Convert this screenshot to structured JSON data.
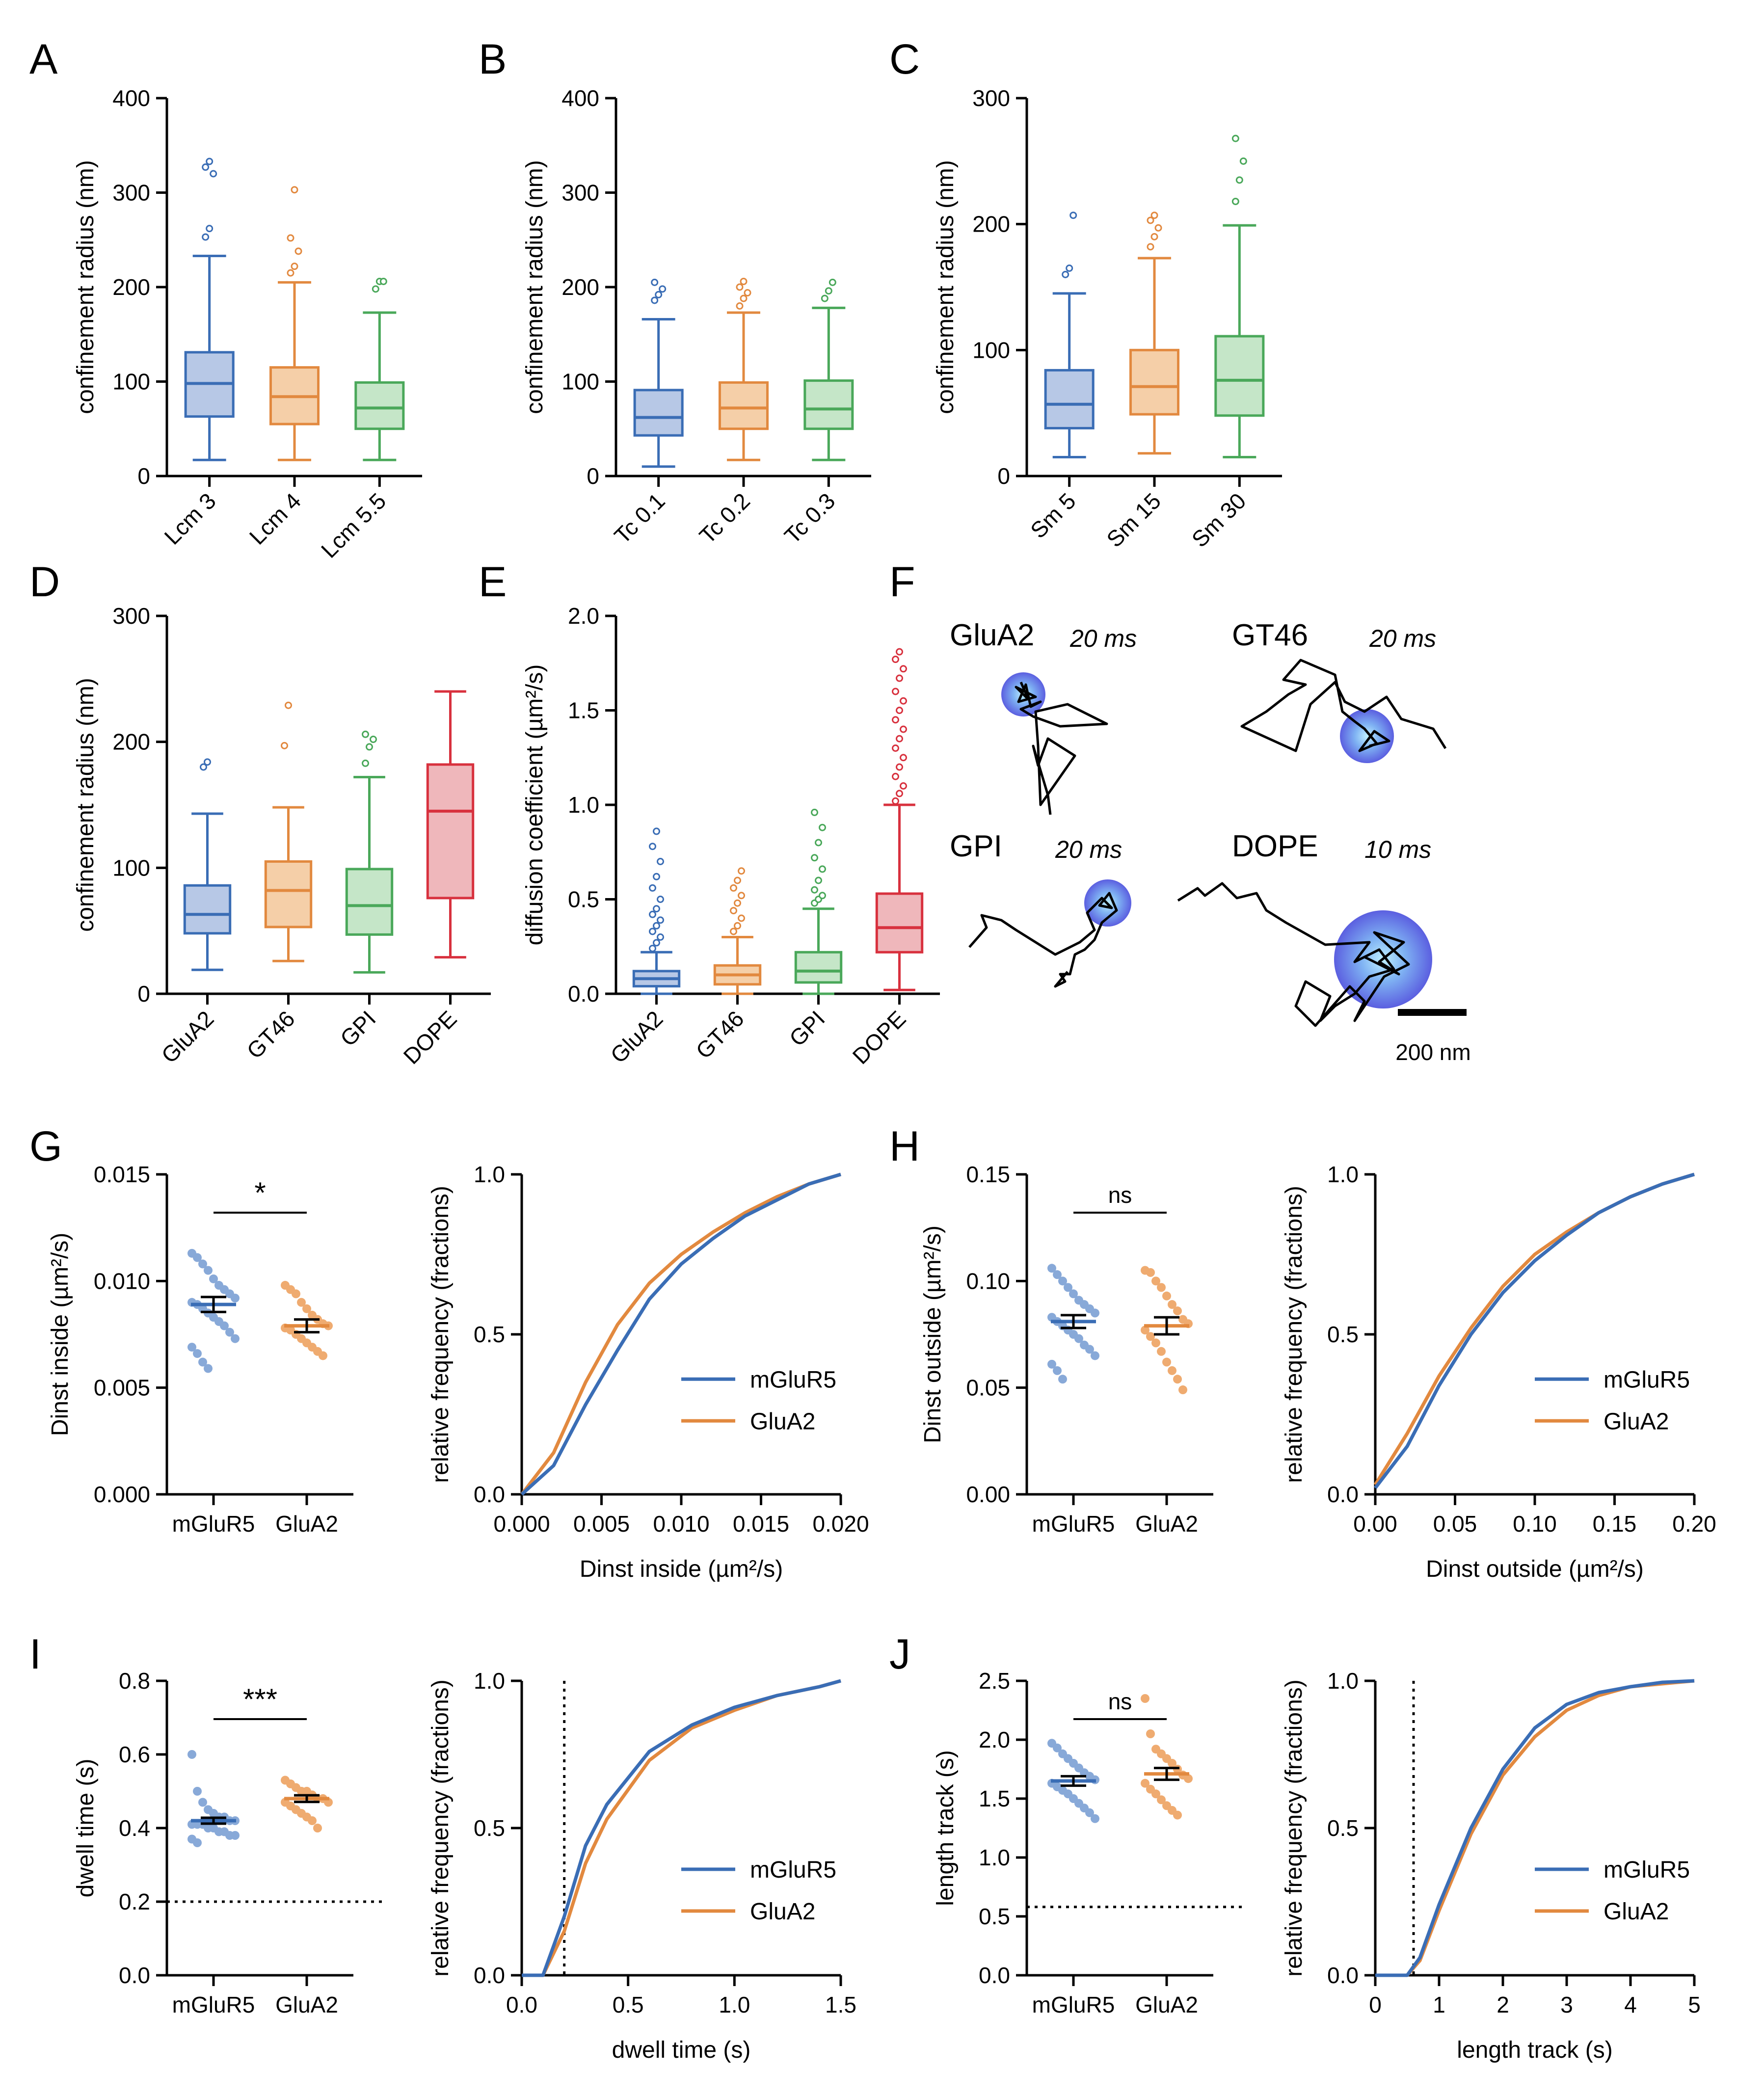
{
  "colors": {
    "blue": "#3a6db5",
    "orange": "#e2893f",
    "green": "#4aa85a",
    "red": "#d8313e",
    "blue_fill": "#b7c8e6",
    "orange_fill": "#f5cfa8",
    "green_fill": "#c5e6c8",
    "red_fill": "#efb7bb",
    "blue_pt": "#88a9d8",
    "orange_pt": "#efab70"
  },
  "chart_data": [
    {
      "panel": "A",
      "type": "box",
      "ylabel": "confinement radius (nm)",
      "ylim": [
        0,
        400
      ],
      "yticks": [
        "0",
        "100",
        "200",
        "300",
        "400"
      ],
      "categories": [
        "Lcm 3",
        "Lcm 4",
        "Lcm 5.5"
      ],
      "boxes": [
        {
          "min": 17,
          "q1": 63,
          "median": 98,
          "q3": 131,
          "max": 233,
          "outliers": [
            253,
            262,
            320,
            327,
            333
          ],
          "color": "blue"
        },
        {
          "min": 17,
          "q1": 55,
          "median": 84,
          "q3": 115,
          "max": 205,
          "outliers": [
            215,
            222,
            238,
            252,
            303
          ],
          "color": "orange"
        },
        {
          "min": 17,
          "q1": 50,
          "median": 72,
          "q3": 99,
          "max": 173,
          "outliers": [
            198,
            206,
            206
          ],
          "color": "green"
        }
      ]
    },
    {
      "panel": "B",
      "type": "box",
      "ylabel": "confinement radius (nm)",
      "ylim": [
        0,
        400
      ],
      "yticks": [
        "0",
        "100",
        "200",
        "300",
        "400"
      ],
      "categories": [
        "Tc 0.1",
        "Tc 0.2",
        "Tc 0.3"
      ],
      "boxes": [
        {
          "min": 10,
          "q1": 43,
          "median": 62,
          "q3": 91,
          "max": 166,
          "outliers": [
            186,
            192,
            198,
            205
          ],
          "color": "blue"
        },
        {
          "min": 17,
          "q1": 50,
          "median": 72,
          "q3": 99,
          "max": 173,
          "outliers": [
            180,
            188,
            194,
            200,
            206
          ],
          "color": "orange"
        },
        {
          "min": 17,
          "q1": 50,
          "median": 71,
          "q3": 101,
          "max": 178,
          "outliers": [
            188,
            196,
            205
          ],
          "color": "green"
        }
      ]
    },
    {
      "panel": "C",
      "type": "box",
      "ylabel": "confinement radius (nm)",
      "ylim": [
        0,
        300
      ],
      "yticks": [
        "0",
        "100",
        "200",
        "300"
      ],
      "categories": [
        "Sm 5",
        "Sm 15",
        "Sm 30"
      ],
      "boxes": [
        {
          "min": 15,
          "q1": 38,
          "median": 57,
          "q3": 84,
          "max": 145,
          "outliers": [
            160,
            165,
            207
          ],
          "color": "blue"
        },
        {
          "min": 18,
          "q1": 49,
          "median": 71,
          "q3": 100,
          "max": 173,
          "outliers": [
            182,
            190,
            197,
            203,
            207
          ],
          "color": "orange"
        },
        {
          "min": 15,
          "q1": 48,
          "median": 76,
          "q3": 111,
          "max": 199,
          "outliers": [
            218,
            235,
            250,
            268
          ],
          "color": "green"
        }
      ]
    },
    {
      "panel": "D",
      "type": "box",
      "ylabel": "confinement radius (nm)",
      "ylim": [
        0,
        300
      ],
      "yticks": [
        "0",
        "100",
        "200",
        "300"
      ],
      "categories": [
        "GluA2",
        "GT46",
        "GPI",
        "DOPE"
      ],
      "boxes": [
        {
          "min": 19,
          "q1": 48,
          "median": 63,
          "q3": 86,
          "max": 143,
          "outliers": [
            180,
            184
          ],
          "color": "blue"
        },
        {
          "min": 26,
          "q1": 53,
          "median": 82,
          "q3": 105,
          "max": 148,
          "outliers": [
            197,
            229
          ],
          "color": "orange"
        },
        {
          "min": 17,
          "q1": 47,
          "median": 70,
          "q3": 99,
          "max": 172,
          "outliers": [
            183,
            196,
            202,
            206
          ],
          "color": "green"
        },
        {
          "min": 29,
          "q1": 76,
          "median": 145,
          "q3": 182,
          "max": 240,
          "outliers": [],
          "color": "red"
        }
      ]
    },
    {
      "panel": "E",
      "type": "box",
      "ylabel": "diffusion coefficient (µm²/s)",
      "ylim": [
        0,
        2.0
      ],
      "yticks": [
        "0.0",
        "0.5",
        "1.0",
        "1.5",
        "2.0"
      ],
      "categories": [
        "GluA2",
        "GT46",
        "GPI",
        "DOPE"
      ],
      "boxes": [
        {
          "min": 0.0,
          "q1": 0.04,
          "median": 0.08,
          "q3": 0.12,
          "max": 0.22,
          "outliers": [
            0.24,
            0.27,
            0.3,
            0.33,
            0.36,
            0.39,
            0.42,
            0.45,
            0.5,
            0.56,
            0.62,
            0.7,
            0.78,
            0.86
          ],
          "color": "blue"
        },
        {
          "min": 0.0,
          "q1": 0.05,
          "median": 0.1,
          "q3": 0.15,
          "max": 0.3,
          "outliers": [
            0.33,
            0.36,
            0.4,
            0.44,
            0.48,
            0.52,
            0.56,
            0.6,
            0.65
          ],
          "color": "orange"
        },
        {
          "min": 0.0,
          "q1": 0.06,
          "median": 0.12,
          "q3": 0.22,
          "max": 0.45,
          "outliers": [
            0.48,
            0.5,
            0.52,
            0.55,
            0.6,
            0.66,
            0.72,
            0.8,
            0.88,
            0.96
          ],
          "color": "green"
        },
        {
          "min": 0.02,
          "q1": 0.22,
          "median": 0.35,
          "q3": 0.53,
          "max": 1.0,
          "outliers": [
            1.02,
            1.06,
            1.1,
            1.15,
            1.2,
            1.25,
            1.3,
            1.35,
            1.4,
            1.45,
            1.5,
            1.55,
            1.6,
            1.67,
            1.72,
            1.77,
            1.81
          ],
          "color": "red"
        }
      ]
    },
    {
      "panel": "G-left",
      "type": "scatter",
      "ylabel": "Dinst inside (µm²/s)",
      "ylim": [
        0,
        0.015
      ],
      "yticks": [
        "0.000",
        "0.005",
        "0.010",
        "0.015"
      ],
      "categories": [
        "mGluR5",
        "GluA2"
      ],
      "significance": "*",
      "groups": [
        {
          "name": "mGluR5",
          "mean": 0.0089,
          "sem": 0.00035,
          "values": [
            0.0113,
            0.0111,
            0.0108,
            0.0105,
            0.0101,
            0.0098,
            0.0096,
            0.0094,
            0.0092,
            0.009,
            0.0089,
            0.0087,
            0.0085,
            0.0083,
            0.0081,
            0.0079,
            0.0076,
            0.0073,
            0.0069,
            0.0066,
            0.0062,
            0.0059
          ],
          "color": "blue"
        },
        {
          "name": "GluA2",
          "mean": 0.0079,
          "sem": 0.0003,
          "values": [
            0.0098,
            0.0096,
            0.0094,
            0.009,
            0.0087,
            0.0084,
            0.0082,
            0.008,
            0.0079,
            0.0078,
            0.0077,
            0.0075,
            0.0073,
            0.0071,
            0.0069,
            0.0067,
            0.0065
          ],
          "color": "orange"
        }
      ]
    },
    {
      "panel": "G-right",
      "type": "line",
      "xlabel": "Dinst inside (µm²/s)",
      "ylabel": "relative frequency (fractions)",
      "xlim": [
        0,
        0.02
      ],
      "ylim": [
        0,
        1
      ],
      "xticks": [
        "0.000",
        "0.005",
        "0.010",
        "0.015",
        "0.020"
      ],
      "yticks": [
        "0.0",
        "0.5",
        "1.0"
      ],
      "series": [
        {
          "name": "mGluR5",
          "color": "blue",
          "x": [
            0,
            0.002,
            0.004,
            0.006,
            0.008,
            0.01,
            0.012,
            0.014,
            0.016,
            0.018,
            0.02
          ],
          "y": [
            0.0,
            0.09,
            0.28,
            0.45,
            0.61,
            0.72,
            0.8,
            0.87,
            0.92,
            0.97,
            1.0
          ]
        },
        {
          "name": "GluA2",
          "color": "orange",
          "x": [
            0,
            0.002,
            0.004,
            0.006,
            0.008,
            0.01,
            0.012,
            0.014,
            0.016,
            0.018,
            0.02
          ],
          "y": [
            0.0,
            0.13,
            0.35,
            0.53,
            0.66,
            0.75,
            0.82,
            0.88,
            0.93,
            0.97,
            1.0
          ]
        }
      ]
    },
    {
      "panel": "H-left",
      "type": "scatter",
      "ylabel": "Dinst outside (µm²/s)",
      "ylim": [
        0,
        0.15
      ],
      "yticks": [
        "0.00",
        "0.05",
        "0.10",
        "0.15"
      ],
      "categories": [
        "mGluR5",
        "GluA2"
      ],
      "significance": "ns",
      "groups": [
        {
          "name": "mGluR5",
          "mean": 0.081,
          "sem": 0.003,
          "values": [
            0.106,
            0.103,
            0.1,
            0.097,
            0.094,
            0.091,
            0.089,
            0.087,
            0.085,
            0.083,
            0.081,
            0.079,
            0.077,
            0.075,
            0.073,
            0.07,
            0.068,
            0.065,
            0.061,
            0.058,
            0.054
          ],
          "color": "blue"
        },
        {
          "name": "GluA2",
          "mean": 0.079,
          "sem": 0.004,
          "values": [
            0.105,
            0.104,
            0.1,
            0.097,
            0.093,
            0.089,
            0.086,
            0.082,
            0.08,
            0.077,
            0.074,
            0.071,
            0.067,
            0.062,
            0.058,
            0.054,
            0.049
          ],
          "color": "orange"
        }
      ]
    },
    {
      "panel": "H-right",
      "type": "line",
      "xlabel": "Dinst outside (µm²/s)",
      "ylabel": "relative frequency (fractions)",
      "xlim": [
        0,
        0.2
      ],
      "ylim": [
        0,
        1
      ],
      "xticks": [
        "0.00",
        "0.05",
        "0.10",
        "0.15",
        "0.20"
      ],
      "yticks": [
        "0.0",
        "0.5",
        "1.0"
      ],
      "series": [
        {
          "name": "mGluR5",
          "color": "blue",
          "x": [
            0,
            0.02,
            0.04,
            0.06,
            0.08,
            0.1,
            0.12,
            0.14,
            0.16,
            0.18,
            0.2
          ],
          "y": [
            0.02,
            0.15,
            0.34,
            0.5,
            0.63,
            0.73,
            0.81,
            0.88,
            0.93,
            0.97,
            1.0
          ]
        },
        {
          "name": "GluA2",
          "color": "orange",
          "x": [
            0,
            0.02,
            0.04,
            0.06,
            0.08,
            0.1,
            0.12,
            0.14,
            0.16,
            0.18,
            0.2
          ],
          "y": [
            0.03,
            0.19,
            0.37,
            0.52,
            0.65,
            0.75,
            0.82,
            0.88,
            0.93,
            0.97,
            1.0
          ]
        }
      ]
    },
    {
      "panel": "I-left",
      "type": "scatter",
      "ylabel": "dwell time (s)",
      "ylim": [
        0,
        0.8
      ],
      "yticks": [
        "0.0",
        "0.2",
        "0.4",
        "0.6",
        "0.8"
      ],
      "categories": [
        "mGluR5",
        "GluA2"
      ],
      "significance": "***",
      "reference_line": 0.2,
      "groups": [
        {
          "name": "mGluR5",
          "mean": 0.42,
          "sem": 0.008,
          "values": [
            0.6,
            0.5,
            0.47,
            0.45,
            0.44,
            0.43,
            0.43,
            0.42,
            0.42,
            0.41,
            0.41,
            0.41,
            0.4,
            0.4,
            0.39,
            0.39,
            0.38,
            0.38,
            0.37,
            0.36
          ],
          "color": "blue"
        },
        {
          "name": "GluA2",
          "mean": 0.48,
          "sem": 0.009,
          "values": [
            0.53,
            0.52,
            0.51,
            0.5,
            0.5,
            0.49,
            0.48,
            0.48,
            0.47,
            0.47,
            0.46,
            0.45,
            0.44,
            0.43,
            0.42,
            0.4
          ],
          "color": "orange"
        }
      ]
    },
    {
      "panel": "I-right",
      "type": "line",
      "xlabel": "dwell time (s)",
      "ylabel": "relative frequency (fractions)",
      "xlim": [
        0,
        1.5
      ],
      "ylim": [
        0,
        1
      ],
      "reference_line_x": 0.2,
      "xticks": [
        "0.0",
        "0.5",
        "1.0",
        "1.5"
      ],
      "yticks": [
        "0.0",
        "0.5",
        "1.0"
      ],
      "series": [
        {
          "name": "mGluR5",
          "color": "blue",
          "x": [
            0,
            0.1,
            0.2,
            0.3,
            0.4,
            0.6,
            0.8,
            1.0,
            1.2,
            1.4,
            1.5
          ],
          "y": [
            0.0,
            0.0,
            0.2,
            0.44,
            0.58,
            0.76,
            0.85,
            0.91,
            0.95,
            0.98,
            1.0
          ]
        },
        {
          "name": "GluA2",
          "color": "orange",
          "x": [
            0,
            0.1,
            0.2,
            0.3,
            0.4,
            0.6,
            0.8,
            1.0,
            1.2,
            1.4,
            1.5
          ],
          "y": [
            0.0,
            0.0,
            0.15,
            0.38,
            0.53,
            0.73,
            0.84,
            0.9,
            0.95,
            0.98,
            1.0
          ]
        }
      ]
    },
    {
      "panel": "J-left",
      "type": "scatter",
      "ylabel": "length track (s)",
      "ylim": [
        0,
        2.5
      ],
      "yticks": [
        "0.0",
        "0.5",
        "1.0",
        "1.5",
        "2.0",
        "2.5"
      ],
      "categories": [
        "mGluR5",
        "GluA2"
      ],
      "significance": "ns",
      "reference_line": 0.58,
      "groups": [
        {
          "name": "mGluR5",
          "mean": 1.65,
          "sem": 0.04,
          "values": [
            1.97,
            1.93,
            1.88,
            1.84,
            1.8,
            1.76,
            1.72,
            1.69,
            1.66,
            1.63,
            1.6,
            1.57,
            1.54,
            1.5,
            1.46,
            1.42,
            1.38,
            1.33
          ],
          "color": "blue"
        },
        {
          "name": "GluA2",
          "mean": 1.71,
          "sem": 0.05,
          "values": [
            2.35,
            2.05,
            1.92,
            1.88,
            1.84,
            1.8,
            1.75,
            1.7,
            1.67,
            1.63,
            1.58,
            1.54,
            1.49,
            1.44,
            1.4,
            1.36
          ],
          "color": "orange"
        }
      ]
    },
    {
      "panel": "J-right",
      "type": "line",
      "xlabel": "length track (s)",
      "ylabel": "relative frequency (fractions)",
      "xlim": [
        0,
        5
      ],
      "ylim": [
        0,
        1
      ],
      "reference_line_x": 0.6,
      "xticks": [
        "0",
        "1",
        "2",
        "3",
        "4",
        "5"
      ],
      "yticks": [
        "0.0",
        "0.5",
        "1.0"
      ],
      "series": [
        {
          "name": "mGluR5",
          "color": "blue",
          "x": [
            0,
            0.5,
            0.7,
            1.0,
            1.5,
            2.0,
            2.5,
            3.0,
            3.5,
            4.0,
            4.5,
            5.0
          ],
          "y": [
            0.0,
            0.0,
            0.06,
            0.24,
            0.5,
            0.7,
            0.84,
            0.92,
            0.96,
            0.98,
            0.995,
            1.0
          ]
        },
        {
          "name": "GluA2",
          "color": "orange",
          "x": [
            0,
            0.5,
            0.7,
            1.0,
            1.5,
            2.0,
            2.5,
            3.0,
            3.5,
            4.0,
            4.5,
            5.0
          ],
          "y": [
            0.0,
            0.0,
            0.05,
            0.22,
            0.48,
            0.68,
            0.81,
            0.9,
            0.95,
            0.98,
            0.99,
            1.0
          ]
        }
      ]
    }
  ],
  "panel_labels": {
    "A": "A",
    "B": "B",
    "C": "C",
    "D": "D",
    "E": "E",
    "F": "F",
    "G": "G",
    "H": "H",
    "I": "I",
    "J": "J"
  },
  "trajectories": [
    {
      "label": "GluA2",
      "time": "20 ms"
    },
    {
      "label": "GT46",
      "time": "20 ms"
    },
    {
      "label": "GPI",
      "time": "20 ms"
    },
    {
      "label": "DOPE",
      "time": "10 ms"
    }
  ],
  "scale_bar": "200 nm",
  "legend": {
    "series1": "mGluR5",
    "series2": "GluA2"
  }
}
